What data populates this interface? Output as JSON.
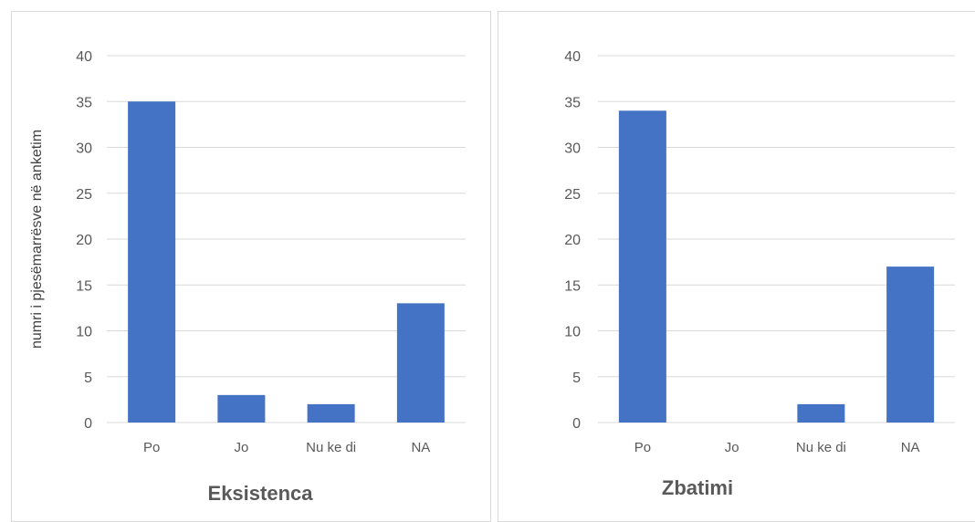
{
  "chart_data": [
    {
      "type": "bar",
      "title": "Eksistenca",
      "ylabel": "numri i pjesëmarrësve në anketim",
      "categories": [
        "Po",
        "Jo",
        "Nu ke di",
        "NA"
      ],
      "values": [
        35,
        3,
        2,
        13
      ],
      "ylim": [
        0,
        40
      ],
      "yticks": [
        0,
        5,
        10,
        15,
        20,
        25,
        30,
        35,
        40
      ],
      "grid": true,
      "bar_color": "#4472c4"
    },
    {
      "type": "bar",
      "title": "Zbatimi",
      "ylabel": "",
      "categories": [
        "Po",
        "Jo",
        "Nu ke di",
        "NA"
      ],
      "values": [
        34,
        0,
        2,
        17
      ],
      "ylim": [
        0,
        40
      ],
      "yticks": [
        0,
        5,
        10,
        15,
        20,
        25,
        30,
        35,
        40
      ],
      "grid": true,
      "bar_color": "#4472c4"
    }
  ]
}
